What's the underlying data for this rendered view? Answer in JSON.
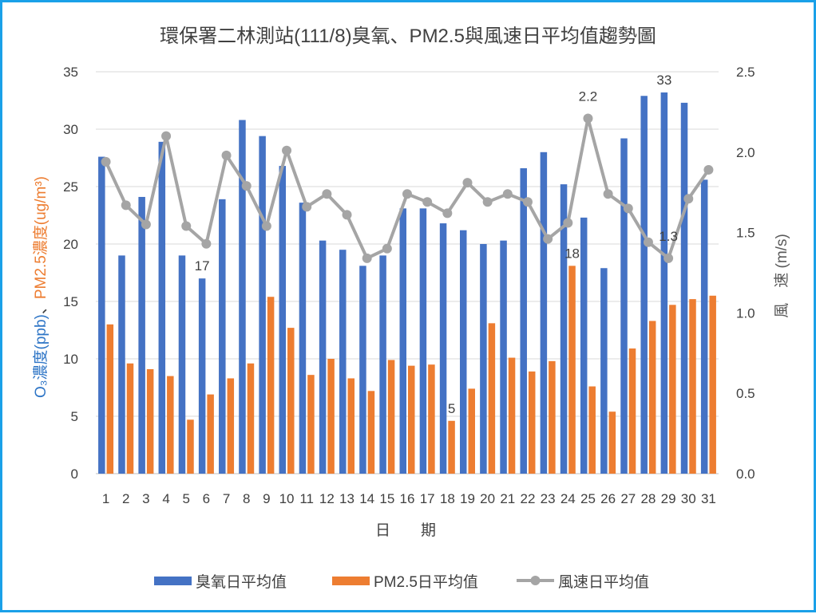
{
  "chart_data": {
    "type": "bar+line",
    "title": "環保署二林測站(111/8)臭氧、PM2.5與風速日平均值趨勢圖",
    "xlabel": "日　　期",
    "ylabel_left_o3": "O₃濃度(ppb)",
    "ylabel_left_sep": "、",
    "ylabel_left_pm": "PM2.5濃度(ug/m³)",
    "ylabel_right": "風　速 (m/s)",
    "categories": [
      "1",
      "2",
      "3",
      "4",
      "5",
      "6",
      "7",
      "8",
      "9",
      "10",
      "11",
      "12",
      "13",
      "14",
      "15",
      "16",
      "17",
      "18",
      "19",
      "20",
      "21",
      "22",
      "23",
      "24",
      "25",
      "26",
      "27",
      "28",
      "29",
      "30",
      "31"
    ],
    "ylim_left": [
      0,
      35
    ],
    "ylim_right": [
      0,
      2.5
    ],
    "yticks_left": [
      "0",
      "5",
      "10",
      "15",
      "20",
      "25",
      "30",
      "35"
    ],
    "yticks_right": [
      "0.0",
      "0.5",
      "1.0",
      "1.5",
      "2.0",
      "2.5"
    ],
    "grid": "horizontal",
    "legend_position": "bottom",
    "series": [
      {
        "name": "臭氧日平均值",
        "type": "bar",
        "axis": "left",
        "color": "#4472c4",
        "values": [
          27.6,
          19.0,
          24.1,
          28.9,
          19.0,
          17.0,
          23.9,
          30.8,
          29.4,
          26.8,
          23.6,
          20.3,
          19.5,
          18.1,
          19.0,
          23.1,
          23.1,
          21.8,
          21.2,
          20.0,
          20.3,
          26.6,
          28.0,
          25.2,
          22.3,
          17.9,
          29.2,
          32.9,
          33.2,
          32.3,
          25.6
        ]
      },
      {
        "name": "PM2.5日平均值",
        "type": "bar",
        "axis": "left",
        "color": "#ed7d31",
        "values": [
          13.0,
          9.6,
          9.1,
          8.5,
          4.7,
          6.9,
          8.3,
          9.6,
          15.4,
          12.7,
          8.6,
          10.0,
          8.3,
          7.2,
          9.9,
          9.4,
          9.5,
          4.6,
          7.4,
          13.1,
          10.1,
          8.9,
          9.8,
          18.1,
          7.6,
          5.4,
          10.9,
          13.3,
          14.7,
          15.2,
          15.5
        ]
      },
      {
        "name": "風速日平均值",
        "type": "line",
        "axis": "right",
        "color": "#a5a5a5",
        "values": [
          1.94,
          1.67,
          1.55,
          2.1,
          1.54,
          1.43,
          1.98,
          1.79,
          1.54,
          2.01,
          1.66,
          1.74,
          1.61,
          1.34,
          1.4,
          1.74,
          1.69,
          1.62,
          1.81,
          1.69,
          1.74,
          1.69,
          1.46,
          1.56,
          2.21,
          1.74,
          1.65,
          1.44,
          1.34,
          1.71,
          1.89
        ]
      }
    ],
    "annotations": [
      {
        "text": "17",
        "series": 0,
        "index": 5
      },
      {
        "text": "33",
        "series": 0,
        "index": 28
      },
      {
        "text": "5",
        "series": 1,
        "index": 17
      },
      {
        "text": "18",
        "series": 1,
        "index": 23
      },
      {
        "text": "2.2",
        "series": 2,
        "index": 24
      },
      {
        "text": "1.3",
        "series": 2,
        "index": 28
      }
    ]
  }
}
